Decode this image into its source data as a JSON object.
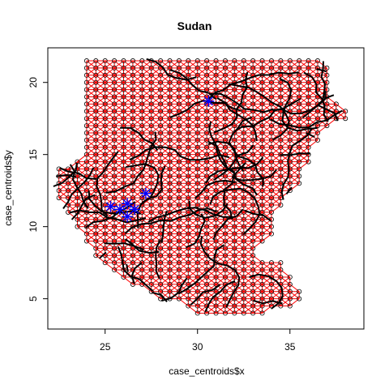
{
  "chart_data": {
    "type": "scatter",
    "title": "Sudan",
    "xlabel": "case_centroids$x",
    "ylabel": "case_centroids$y",
    "xlim": [
      21.9,
      39.0
    ],
    "ylim": [
      2.9,
      22.4
    ],
    "xticks": [
      25,
      30,
      35
    ],
    "yticks": [
      5,
      10,
      15,
      20
    ],
    "grid": false,
    "legend": "none",
    "grid_spacing_deg": 0.5,
    "point_style": "open-circle",
    "colors": {
      "red_graph": "#ff0000",
      "road_network": "#000000",
      "highlight": "#0000ff",
      "points": "#000000"
    },
    "highlighted_nodes": [
      {
        "x": 25.3,
        "y": 11.4
      },
      {
        "x": 25.8,
        "y": 11.2
      },
      {
        "x": 26.2,
        "y": 11.6
      },
      {
        "x": 26.6,
        "y": 11.2
      },
      {
        "x": 26.2,
        "y": 10.7
      },
      {
        "x": 27.2,
        "y": 12.3
      },
      {
        "x": 30.6,
        "y": 18.7
      }
    ],
    "region_polygon": [
      [
        24.0,
        21.8
      ],
      [
        36.9,
        21.8
      ],
      [
        37.3,
        20.2
      ],
      [
        37.4,
        18.8
      ],
      [
        37.8,
        18.2
      ],
      [
        38.4,
        18.0
      ],
      [
        38.3,
        17.5
      ],
      [
        37.2,
        17.0
      ],
      [
        36.6,
        16.2
      ],
      [
        36.4,
        15.0
      ],
      [
        35.9,
        14.0
      ],
      [
        35.7,
        13.0
      ],
      [
        35.2,
        12.4
      ],
      [
        34.6,
        11.6
      ],
      [
        34.2,
        10.8
      ],
      [
        34.3,
        9.6
      ],
      [
        33.8,
        9.1
      ],
      [
        33.2,
        8.6
      ],
      [
        33.3,
        8.0
      ],
      [
        34.0,
        7.8
      ],
      [
        34.6,
        7.5
      ],
      [
        35.2,
        6.6
      ],
      [
        35.9,
        5.2
      ],
      [
        35.8,
        4.6
      ],
      [
        34.6,
        4.4
      ],
      [
        33.8,
        4.0
      ],
      [
        32.8,
        3.6
      ],
      [
        31.3,
        3.7
      ],
      [
        30.6,
        3.8
      ],
      [
        29.9,
        3.5
      ],
      [
        29.3,
        4.4
      ],
      [
        28.5,
        4.7
      ],
      [
        27.6,
        5.0
      ],
      [
        26.9,
        5.6
      ],
      [
        26.2,
        6.3
      ],
      [
        25.5,
        6.9
      ],
      [
        24.9,
        7.2
      ],
      [
        24.4,
        7.9
      ],
      [
        24.0,
        8.6
      ],
      [
        23.8,
        9.3
      ],
      [
        23.3,
        10.2
      ],
      [
        22.8,
        11.0
      ],
      [
        22.5,
        12.0
      ],
      [
        22.1,
        12.9
      ],
      [
        22.2,
        13.8
      ],
      [
        22.8,
        14.3
      ],
      [
        23.5,
        14.6
      ],
      [
        23.6,
        15.3
      ],
      [
        24.0,
        15.6
      ],
      [
        24.0,
        18.0
      ],
      [
        24.0,
        19.5
      ],
      [
        24.0,
        21.8
      ]
    ]
  }
}
